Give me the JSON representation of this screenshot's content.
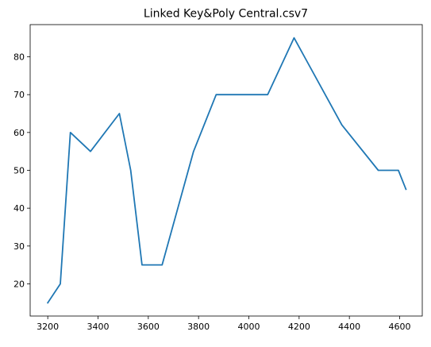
{
  "chart_data": {
    "type": "line",
    "title": "Linked Key&Poly Central.csv7",
    "xlabel": "",
    "ylabel": "",
    "xlim": [
      3130,
      4690
    ],
    "ylim": [
      11.5,
      88.5
    ],
    "x_ticks": [
      3200,
      3400,
      3600,
      3800,
      4000,
      4200,
      4400,
      4600
    ],
    "y_ticks": [
      20,
      30,
      40,
      50,
      60,
      70,
      80
    ],
    "grid": false,
    "legend": "none",
    "series": [
      {
        "color": "#1f77b4",
        "x": [
          3200,
          3250,
          3290,
          3370,
          3485,
          3530,
          3575,
          3655,
          3780,
          3870,
          4075,
          4180,
          4370,
          4515,
          4595,
          4625
        ],
        "y": [
          15,
          20,
          60,
          55,
          65,
          50,
          25,
          25,
          55,
          70,
          70,
          85,
          62,
          50,
          50,
          45
        ]
      }
    ]
  }
}
